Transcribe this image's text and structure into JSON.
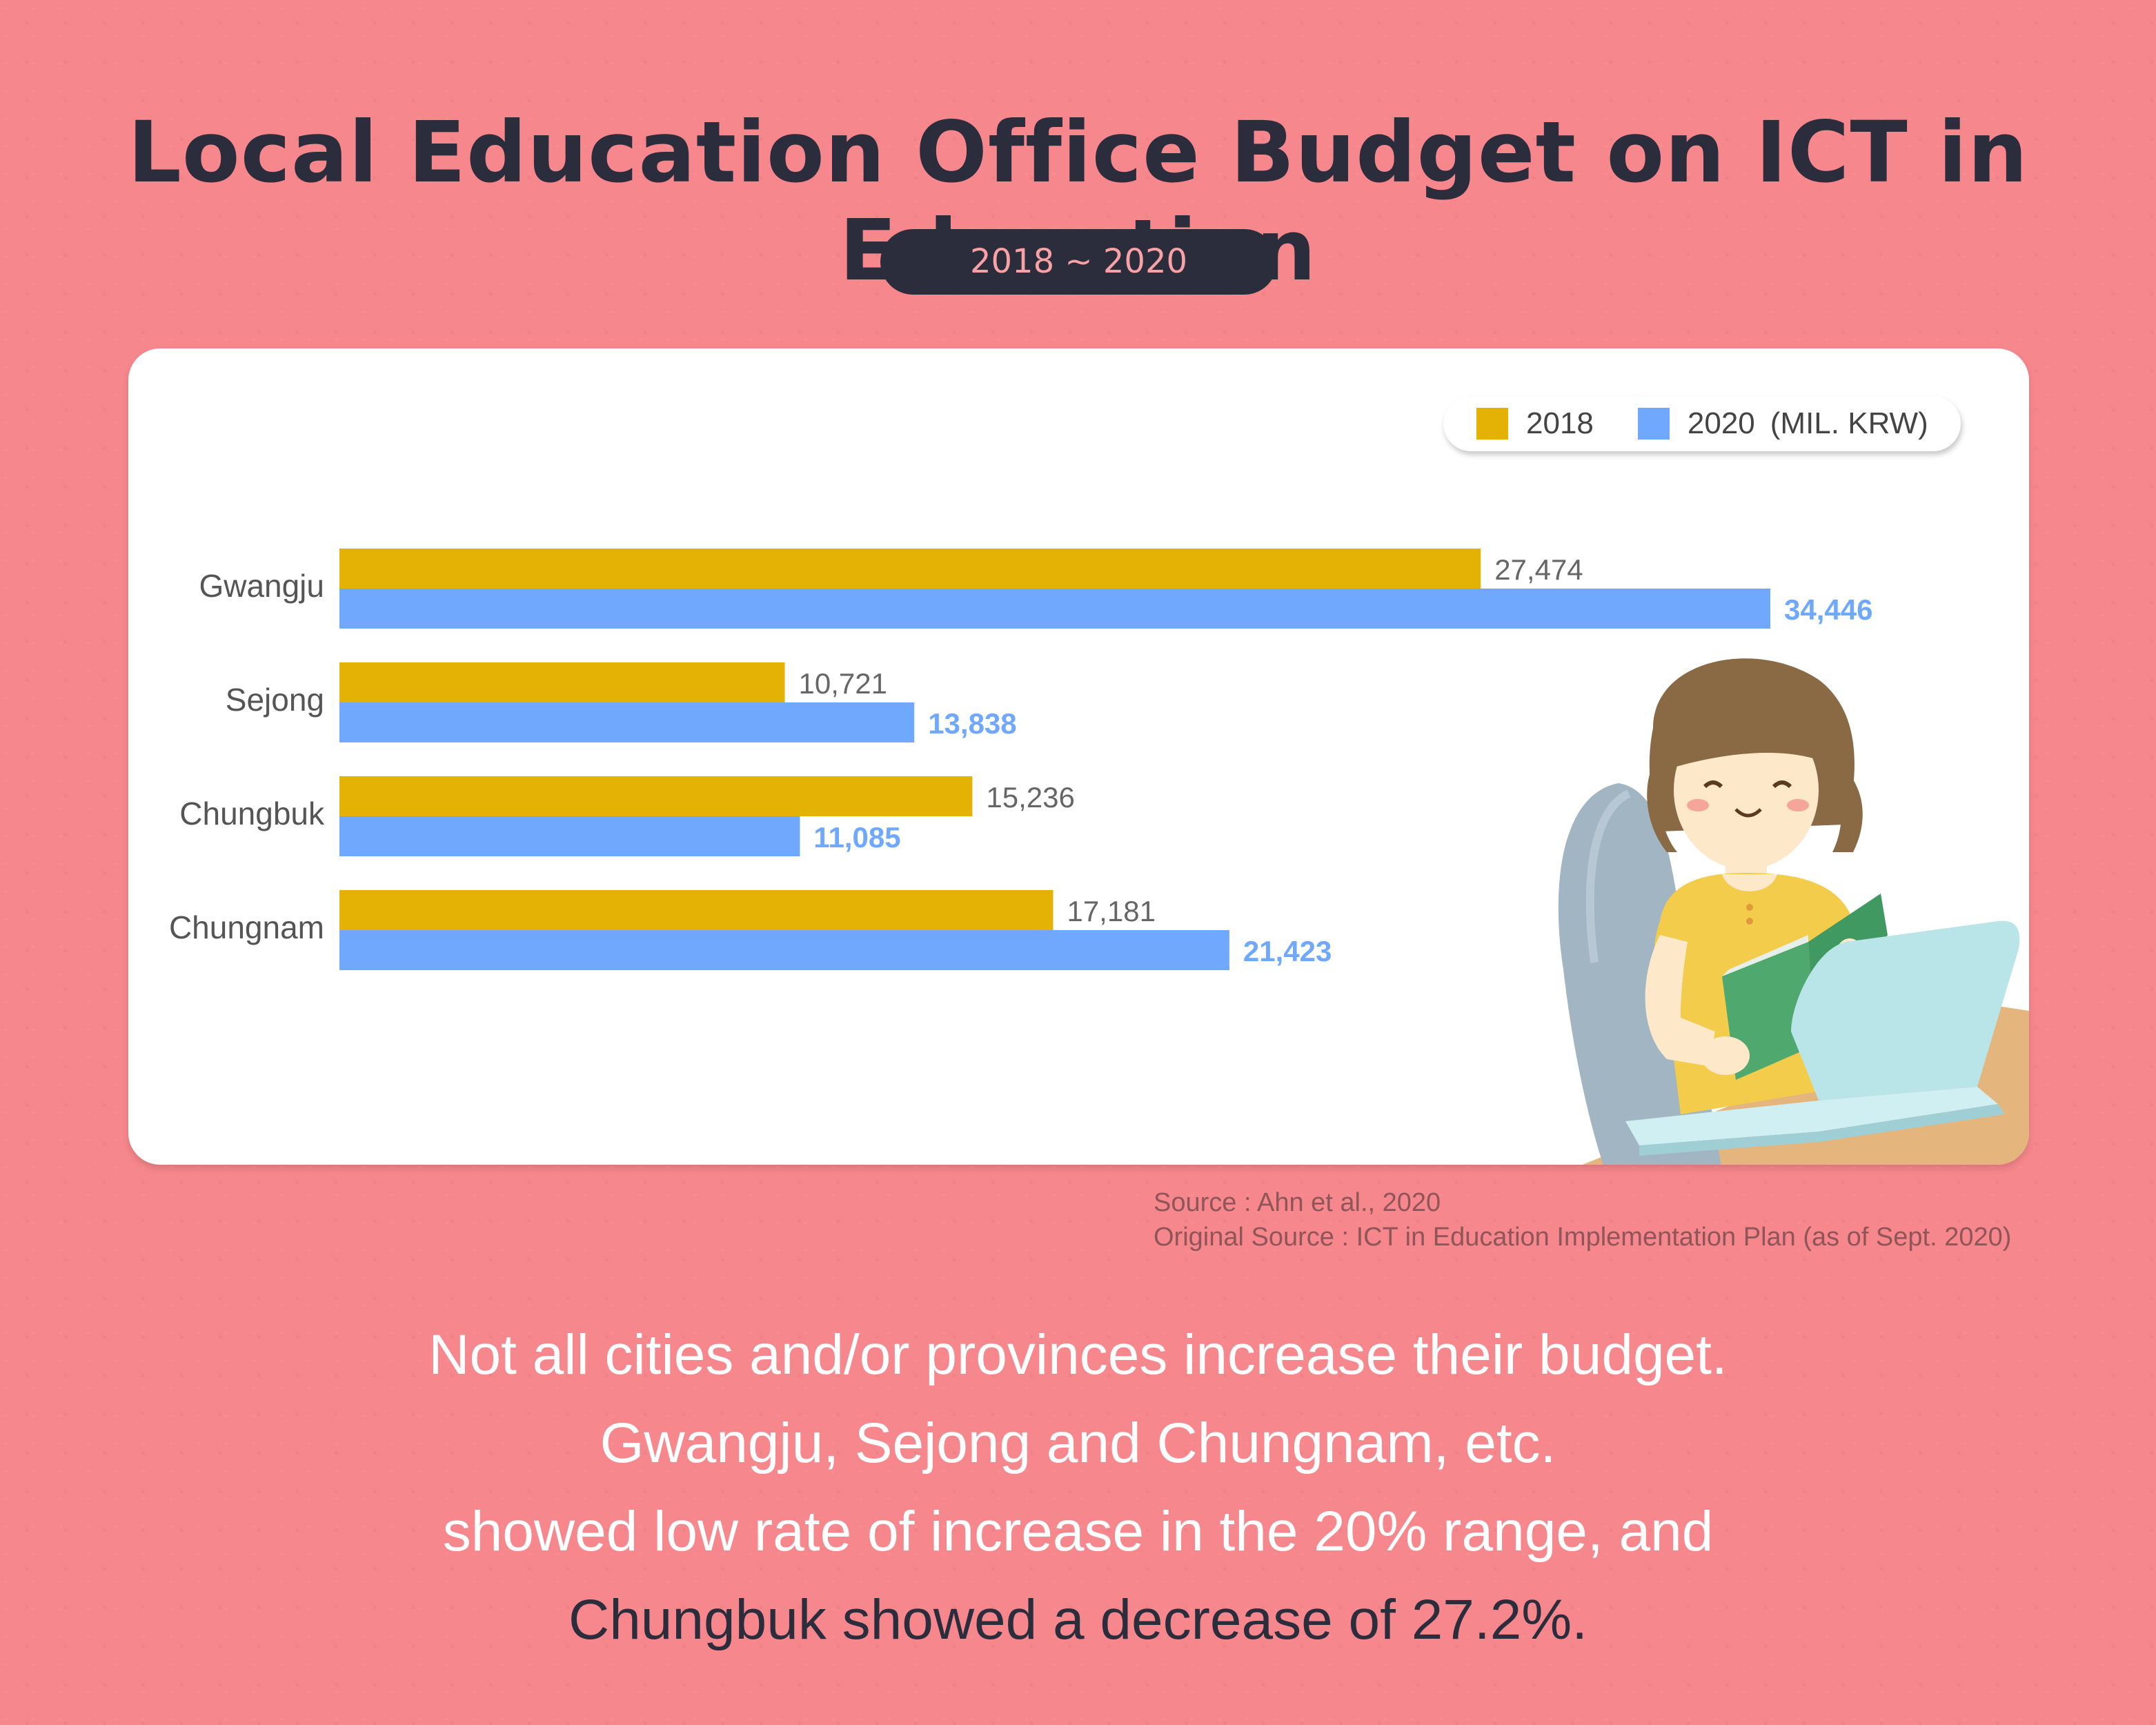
{
  "header": {
    "title": "Local Education Office Budget on ICT in Education",
    "period": "2018 ~ 2020"
  },
  "legend": {
    "item_2018": "2018",
    "item_2020": "2020",
    "unit": "(MIL. KRW)"
  },
  "chart_data": {
    "type": "bar",
    "orientation": "horizontal",
    "categories": [
      "Gwangju",
      "Sejong",
      "Chungbuk",
      "Chungnam"
    ],
    "series": [
      {
        "name": "2018",
        "values": [
          27474,
          10721,
          15236,
          17181
        ],
        "labels": [
          "27,474",
          "10,721",
          "15,236",
          "17,181"
        ],
        "color": "#e3b205"
      },
      {
        "name": "2020",
        "values": [
          34446,
          13838,
          11085,
          21423
        ],
        "labels": [
          "34,446",
          "13,838",
          "11,085",
          "21,423"
        ],
        "color": "#6fa8fc"
      }
    ],
    "unit": "(MIL. KRW)",
    "legend_position": "top-right",
    "grid": false
  },
  "source": {
    "line1": "Source : Ahn et al., 2020",
    "line2": "Original Source : ICT in Education Implementation Plan (as of Sept. 2020)"
  },
  "caption": {
    "line1": "Not all cities and/or provinces increase their budget.",
    "line2": "Gwangju, Sejong and Chungnam, etc.",
    "line3": "showed low rate of increase in the 20% range, and",
    "line4": "Chungbuk showed a decrease of 27.2%."
  },
  "colors": {
    "background": "#f6878c",
    "dark": "#2c2d3c",
    "bar_2018": "#e3b205",
    "bar_2020": "#6fa8fc"
  }
}
